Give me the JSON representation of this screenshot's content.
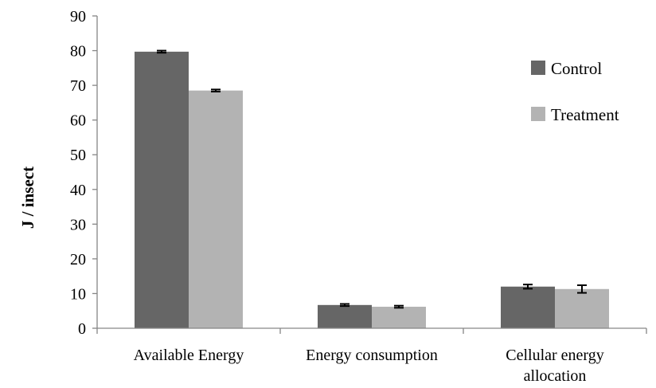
{
  "chart_data": {
    "type": "bar",
    "title": "",
    "xlabel": "",
    "ylabel": "J / insect",
    "ylim": [
      0,
      90
    ],
    "yticks": [
      0,
      10,
      20,
      30,
      40,
      50,
      60,
      70,
      80,
      90
    ],
    "categories": [
      [
        "Available Energy"
      ],
      [
        "Energy consumption"
      ],
      [
        "Cellular energy",
        "allocation"
      ]
    ],
    "series": [
      {
        "name": "Control",
        "color": "#666666",
        "values": [
          79.7,
          6.7,
          12.0
        ],
        "errors": [
          0.3,
          0.3,
          0.6
        ]
      },
      {
        "name": "Treatment",
        "color": "#b3b3b3",
        "values": [
          68.5,
          6.2,
          11.3
        ],
        "errors": [
          0.3,
          0.3,
          1.1
        ]
      }
    ],
    "grid": false,
    "legend_position": "right"
  }
}
